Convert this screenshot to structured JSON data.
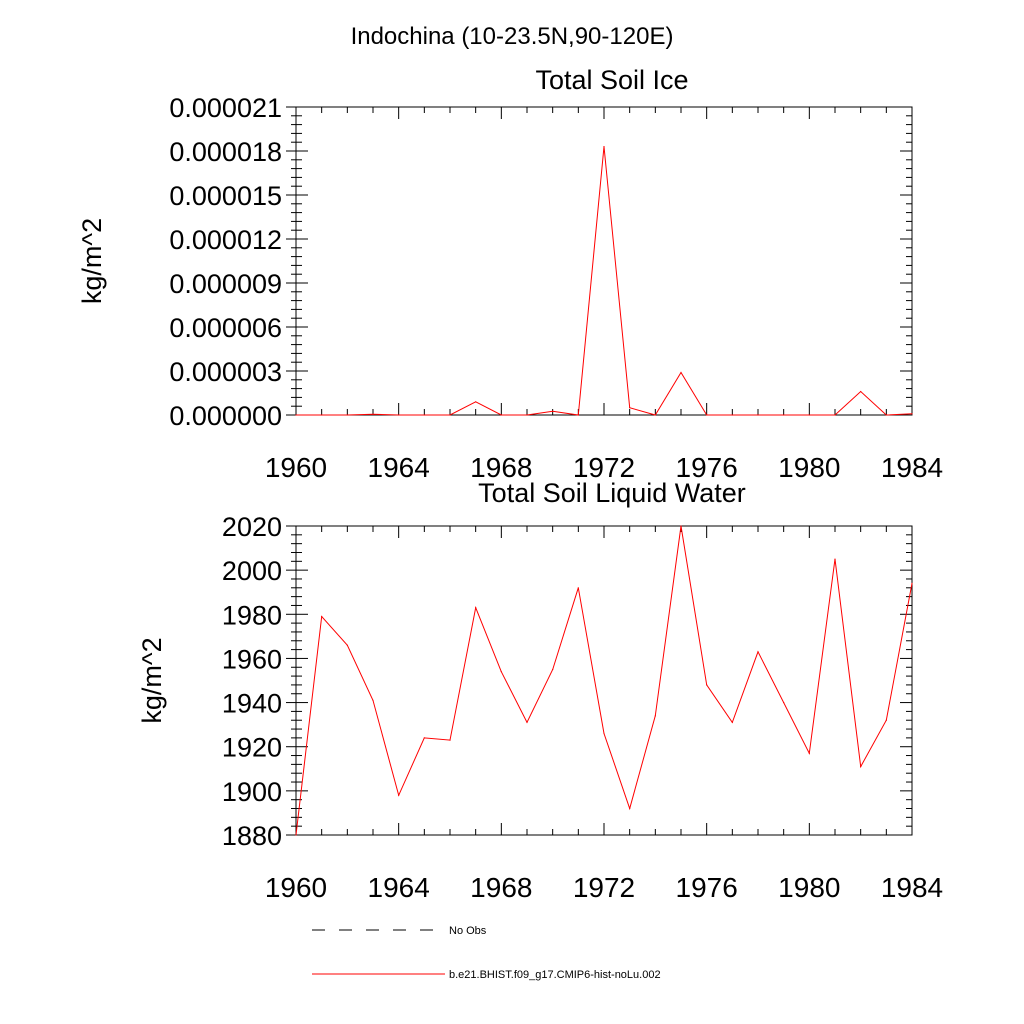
{
  "figure": {
    "title": "Indochina (10-23.5N,90-120E)"
  },
  "chart_data": [
    {
      "type": "line",
      "title": "Total Soil Ice",
      "xlabel": "",
      "ylabel": "kg/m^2",
      "xlim": [
        1960,
        1984
      ],
      "ylim": [
        0,
        2.1e-05
      ],
      "x_ticks": [
        "1960",
        "1964",
        "1968",
        "1972",
        "1976",
        "1980",
        "1984"
      ],
      "y_ticks": [
        "0.000000",
        "0.000003",
        "0.000006",
        "0.000009",
        "0.000012",
        "0.000015",
        "0.000018",
        "0.000021"
      ],
      "x": [
        1960,
        1961,
        1962,
        1963,
        1964,
        1965,
        1966,
        1967,
        1968,
        1969,
        1970,
        1971,
        1972,
        1973,
        1974,
        1975,
        1976,
        1977,
        1978,
        1979,
        1980,
        1981,
        1982,
        1983,
        1984
      ],
      "series": [
        {
          "name": "b.e21.BHIST.f09_g17.CMIP6-hist-noLu.002",
          "color": "#ff0000",
          "values": [
            0,
            0,
            0,
            5e-08,
            0,
            0,
            0,
            9e-07,
            0,
            0,
            2.5e-07,
            0,
            1.83e-05,
            5e-07,
            0,
            2.9e-06,
            0,
            0,
            0,
            0,
            0,
            0,
            1.6e-06,
            0,
            8e-08
          ]
        }
      ],
      "grid": false
    },
    {
      "type": "line",
      "title": "Total Soil Liquid Water",
      "xlabel": "",
      "ylabel": "kg/m^2",
      "xlim": [
        1960,
        1984
      ],
      "ylim": [
        1880,
        2020
      ],
      "x_ticks": [
        "1960",
        "1964",
        "1968",
        "1972",
        "1976",
        "1980",
        "1984"
      ],
      "y_ticks": [
        "1880",
        "1900",
        "1920",
        "1940",
        "1960",
        "1980",
        "2000",
        "2020"
      ],
      "x": [
        1960,
        1961,
        1962,
        1963,
        1964,
        1965,
        1966,
        1967,
        1968,
        1969,
        1970,
        1971,
        1972,
        1973,
        1974,
        1975,
        1976,
        1977,
        1978,
        1979,
        1980,
        1981,
        1982,
        1983,
        1984
      ],
      "series": [
        {
          "name": "b.e21.BHIST.f09_g17.CMIP6-hist-noLu.002",
          "color": "#ff0000",
          "values": [
            1880,
            1979,
            1966,
            1941,
            1898,
            1924,
            1923,
            1983,
            1954,
            1931,
            1955,
            1992,
            1926,
            1892,
            1934,
            2020,
            1948,
            1931,
            1963,
            1940,
            1917,
            2005,
            1911,
            1932,
            1994
          ]
        }
      ],
      "grid": false
    }
  ],
  "legend": {
    "placement": "bottom-left",
    "entries": [
      {
        "label": "No Obs",
        "style": "dashed",
        "color": "#000000"
      },
      {
        "label": "b.e21.BHIST.f09_g17.CMIP6-hist-noLu.002",
        "style": "solid",
        "color": "#ff0000"
      }
    ]
  }
}
